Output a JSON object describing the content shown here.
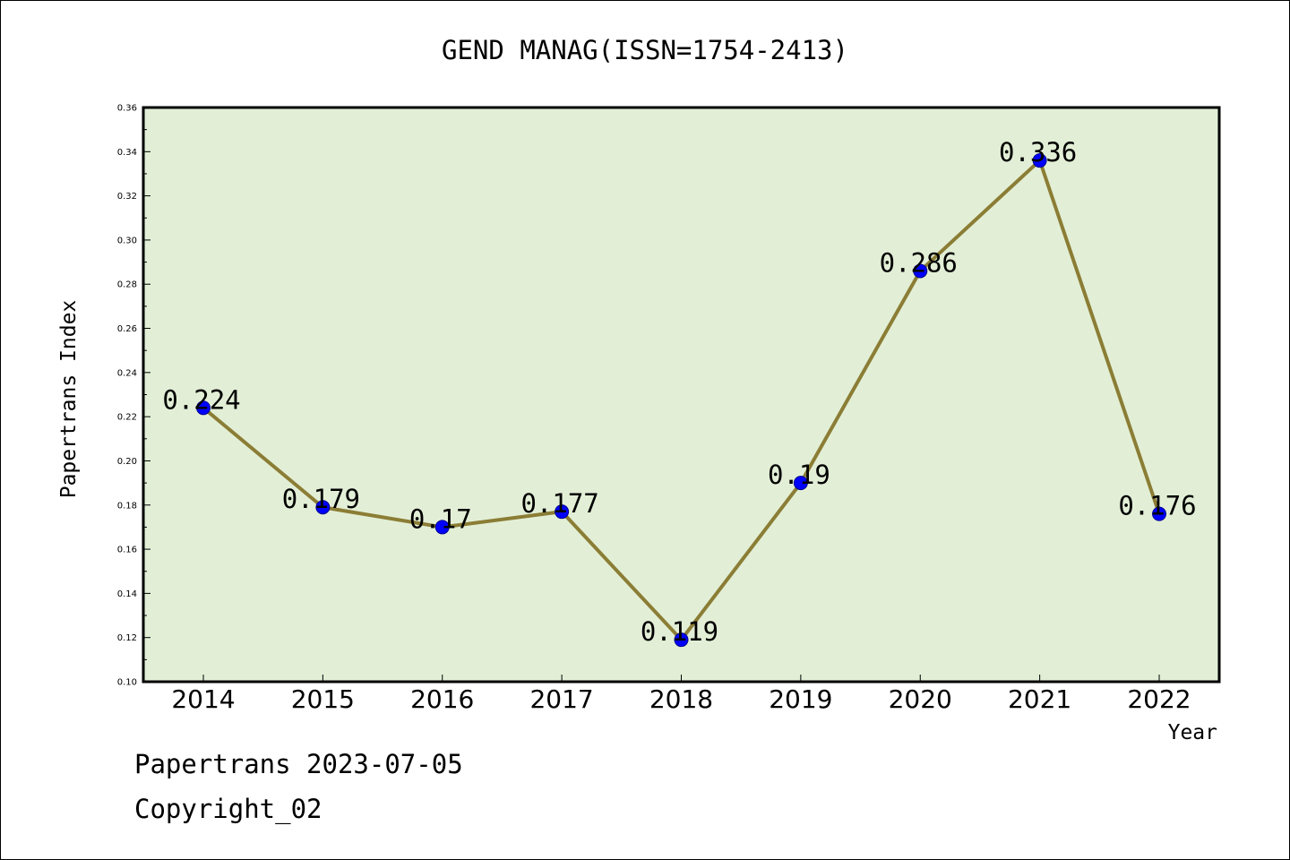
{
  "chart_data": {
    "type": "line",
    "title": "GEND MANAG(ISSN=1754-2413)",
    "xlabel": "Year",
    "ylabel": "Papertrans Index",
    "categories": [
      "2014",
      "2015",
      "2016",
      "2017",
      "2018",
      "2019",
      "2020",
      "2021",
      "2022"
    ],
    "series": [
      {
        "values": [
          0.224,
          0.179,
          0.17,
          0.177,
          0.119,
          0.19,
          0.286,
          0.336,
          0.176
        ],
        "data_labels": [
          "0.224",
          "0.179",
          "0.17",
          "0.177",
          "0.119",
          "0.19",
          "0.286",
          "0.336",
          "0.176"
        ]
      }
    ],
    "ylim": [
      0.1,
      0.36
    ],
    "yticks": [
      "0.10",
      "0.12",
      "0.14",
      "0.16",
      "0.18",
      "0.20",
      "0.22",
      "0.24",
      "0.26",
      "0.28",
      "0.30",
      "0.32",
      "0.34",
      "0.36"
    ],
    "grid": false,
    "legend": "none",
    "colors": {
      "plot_background": "#e2efd6",
      "line": "#8b7d35",
      "marker_fill": "#0000ff",
      "marker_edge": "#00008b"
    }
  },
  "footer": {
    "line1": "Papertrans 2023-07-05",
    "line2": "Copyright_02"
  }
}
